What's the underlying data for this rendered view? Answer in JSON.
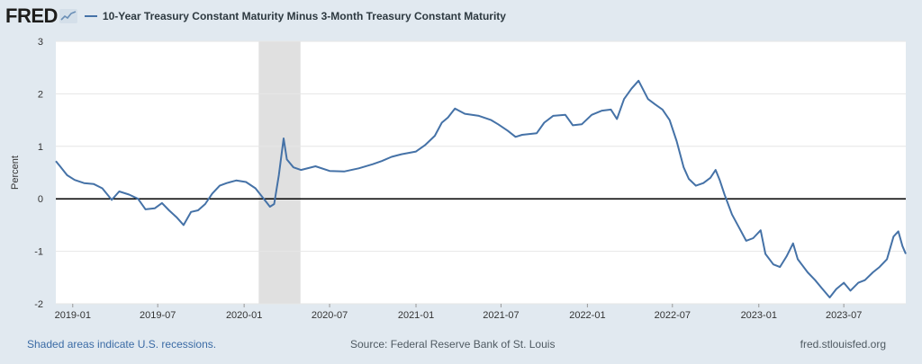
{
  "header": {
    "logo": "FRED",
    "legend_label": "10-Year Treasury Constant Maturity Minus 3-Month Treasury Constant Maturity"
  },
  "footer": {
    "recession_note": "Shaded areas indicate U.S. recessions.",
    "source": "Source: Federal Reserve Bank of St. Louis",
    "site": "fred.stlouisfed.org"
  },
  "colors": {
    "line": "#4572a7",
    "recession": "#e0e0e0",
    "zero_line": "#000000",
    "grid": "#e6e6e6"
  },
  "chart_data": {
    "type": "line",
    "ylabel": "Percent",
    "ylim": [
      -2,
      3
    ],
    "yticks": [
      3,
      2,
      1,
      0,
      -1,
      -2
    ],
    "xlim": [
      "2018-11-26",
      "2023-11-10"
    ],
    "xticks": [
      "2019-01",
      "2019-07",
      "2020-01",
      "2020-07",
      "2021-01",
      "2021-07",
      "2022-01",
      "2022-07",
      "2023-01",
      "2023-07"
    ],
    "grid": true,
    "zero_line": true,
    "recessions": [
      {
        "start": "2020-02-01",
        "end": "2020-04-30"
      }
    ],
    "series": [
      {
        "name": "10-Year Treasury Constant Maturity Minus 3-Month Treasury Constant Maturity",
        "points": [
          [
            "2018-11-26",
            0.72
          ],
          [
            "2018-12-05",
            0.62
          ],
          [
            "2018-12-20",
            0.45
          ],
          [
            "2019-01-05",
            0.36
          ],
          [
            "2019-01-25",
            0.3
          ],
          [
            "2019-02-15",
            0.28
          ],
          [
            "2019-03-05",
            0.2
          ],
          [
            "2019-03-25",
            -0.02
          ],
          [
            "2019-04-10",
            0.14
          ],
          [
            "2019-05-01",
            0.08
          ],
          [
            "2019-05-20",
            0.0
          ],
          [
            "2019-06-05",
            -0.2
          ],
          [
            "2019-06-25",
            -0.18
          ],
          [
            "2019-07-10",
            -0.08
          ],
          [
            "2019-07-25",
            -0.22
          ],
          [
            "2019-08-10",
            -0.35
          ],
          [
            "2019-08-25",
            -0.5
          ],
          [
            "2019-09-10",
            -0.25
          ],
          [
            "2019-09-25",
            -0.22
          ],
          [
            "2019-10-10",
            -0.1
          ],
          [
            "2019-10-25",
            0.1
          ],
          [
            "2019-11-10",
            0.25
          ],
          [
            "2019-11-25",
            0.3
          ],
          [
            "2019-12-15",
            0.35
          ],
          [
            "2020-01-05",
            0.32
          ],
          [
            "2020-01-25",
            0.2
          ],
          [
            "2020-02-10",
            0.02
          ],
          [
            "2020-02-25",
            -0.15
          ],
          [
            "2020-03-05",
            -0.1
          ],
          [
            "2020-03-15",
            0.45
          ],
          [
            "2020-03-25",
            1.15
          ],
          [
            "2020-04-01",
            0.75
          ],
          [
            "2020-04-15",
            0.6
          ],
          [
            "2020-05-01",
            0.55
          ],
          [
            "2020-06-01",
            0.62
          ],
          [
            "2020-07-01",
            0.53
          ],
          [
            "2020-08-01",
            0.52
          ],
          [
            "2020-09-01",
            0.58
          ],
          [
            "2020-10-01",
            0.66
          ],
          [
            "2020-10-20",
            0.72
          ],
          [
            "2020-11-10",
            0.8
          ],
          [
            "2020-12-01",
            0.85
          ],
          [
            "2021-01-01",
            0.9
          ],
          [
            "2021-01-20",
            1.02
          ],
          [
            "2021-02-10",
            1.2
          ],
          [
            "2021-02-25",
            1.45
          ],
          [
            "2021-03-10",
            1.55
          ],
          [
            "2021-03-25",
            1.72
          ],
          [
            "2021-04-15",
            1.62
          ],
          [
            "2021-05-15",
            1.58
          ],
          [
            "2021-06-10",
            1.5
          ],
          [
            "2021-06-25",
            1.42
          ],
          [
            "2021-07-15",
            1.3
          ],
          [
            "2021-08-01",
            1.18
          ],
          [
            "2021-08-15",
            1.22
          ],
          [
            "2021-09-15",
            1.25
          ],
          [
            "2021-10-01",
            1.45
          ],
          [
            "2021-10-20",
            1.58
          ],
          [
            "2021-11-15",
            1.6
          ],
          [
            "2021-12-01",
            1.4
          ],
          [
            "2021-12-20",
            1.42
          ],
          [
            "2022-01-10",
            1.6
          ],
          [
            "2022-02-01",
            1.68
          ],
          [
            "2022-02-20",
            1.7
          ],
          [
            "2022-03-05",
            1.52
          ],
          [
            "2022-03-20",
            1.9
          ],
          [
            "2022-04-05",
            2.1
          ],
          [
            "2022-04-20",
            2.25
          ],
          [
            "2022-05-10",
            1.9
          ],
          [
            "2022-05-25",
            1.8
          ],
          [
            "2022-06-10",
            1.7
          ],
          [
            "2022-06-25",
            1.5
          ],
          [
            "2022-07-10",
            1.1
          ],
          [
            "2022-07-25",
            0.6
          ],
          [
            "2022-08-05",
            0.38
          ],
          [
            "2022-08-20",
            0.25
          ],
          [
            "2022-09-05",
            0.3
          ],
          [
            "2022-09-20",
            0.4
          ],
          [
            "2022-10-01",
            0.55
          ],
          [
            "2022-10-10",
            0.35
          ],
          [
            "2022-10-20",
            0.08
          ],
          [
            "2022-11-05",
            -0.3
          ],
          [
            "2022-11-20",
            -0.55
          ],
          [
            "2022-12-05",
            -0.8
          ],
          [
            "2022-12-20",
            -0.75
          ],
          [
            "2023-01-05",
            -0.6
          ],
          [
            "2023-01-15",
            -1.05
          ],
          [
            "2023-02-01",
            -1.25
          ],
          [
            "2023-02-15",
            -1.3
          ],
          [
            "2023-03-01",
            -1.1
          ],
          [
            "2023-03-15",
            -0.85
          ],
          [
            "2023-03-25",
            -1.15
          ],
          [
            "2023-04-15",
            -1.4
          ],
          [
            "2023-05-01",
            -1.55
          ],
          [
            "2023-05-15",
            -1.7
          ],
          [
            "2023-06-01",
            -1.88
          ],
          [
            "2023-06-15",
            -1.72
          ],
          [
            "2023-07-01",
            -1.6
          ],
          [
            "2023-07-15",
            -1.75
          ],
          [
            "2023-08-01",
            -1.6
          ],
          [
            "2023-08-15",
            -1.55
          ],
          [
            "2023-09-01",
            -1.4
          ],
          [
            "2023-09-15",
            -1.3
          ],
          [
            "2023-10-01",
            -1.15
          ],
          [
            "2023-10-15",
            -0.72
          ],
          [
            "2023-10-25",
            -0.62
          ],
          [
            "2023-11-03",
            -0.9
          ],
          [
            "2023-11-10",
            -1.05
          ]
        ]
      }
    ]
  }
}
